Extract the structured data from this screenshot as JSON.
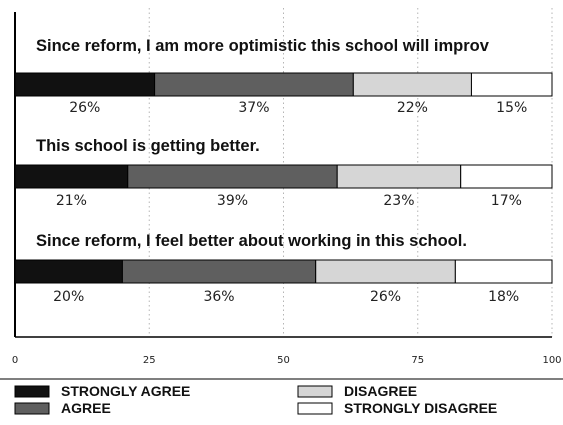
{
  "chart_data": {
    "type": "bar",
    "orientation": "horizontal",
    "stacked": true,
    "categories": [
      "Since reform, I am more optimistic this school will improv",
      "This school is getting better.",
      "Since reform, I feel better about working in this school."
    ],
    "series": [
      {
        "name": "STRONGLY AGREE",
        "values": [
          26,
          21,
          20
        ],
        "labels": [
          "26%",
          "21%",
          "20%"
        ],
        "color": "#111111"
      },
      {
        "name": "AGREE",
        "values": [
          37,
          39,
          36
        ],
        "labels": [
          "37%",
          "39%",
          "36%"
        ],
        "color": "#5f5f5f"
      },
      {
        "name": "DISAGREE",
        "values": [
          22,
          23,
          26
        ],
        "labels": [
          "22%",
          "23%",
          "26%"
        ],
        "color": "#d6d6d6"
      },
      {
        "name": "STRONGLY DISAGREE",
        "values": [
          15,
          17,
          18
        ],
        "labels": [
          "15%",
          "17%",
          "18%"
        ],
        "color": "#ffffff"
      }
    ],
    "xlim": [
      0,
      100
    ],
    "xticks": [
      "0",
      "25",
      "50",
      "75",
      "100"
    ],
    "grid": true,
    "legend_position": "bottom"
  }
}
